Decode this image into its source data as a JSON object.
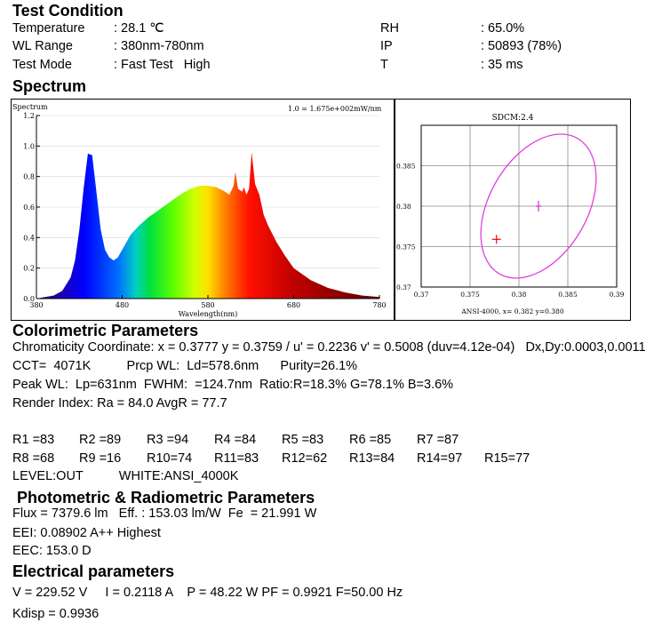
{
  "test_condition": {
    "title": "Test Condition",
    "rows": [
      {
        "k1": "Temperature",
        "v1": ": 28.1 ℃",
        "k2": "RH",
        "v2": ": 65.0%"
      },
      {
        "k1": "WL Range",
        "v1": ": 380nm-780nm",
        "k2": "IP",
        "v2": ": 50893 (78%)"
      },
      {
        "k1": "Test Mode",
        "v1": ": Fast Test   High",
        "k2": "T",
        "v2": ": 35 ms"
      }
    ]
  },
  "spectrum": {
    "title": "Spectrum",
    "chart_label": "Spectrum",
    "scale_note": "1.0 = 1.675e+002mW/nm",
    "xlabel": "Wavelength(nm)",
    "x_ticks": [
      "380",
      "480",
      "580",
      "680",
      "780"
    ],
    "y_ticks": [
      "0.0",
      "0.2",
      "0.4",
      "0.6",
      "0.8",
      "1.0",
      "1.2"
    ]
  },
  "chart_data": [
    {
      "type": "area",
      "xlabel": "Wavelength(nm)",
      "xlim": [
        380,
        780
      ],
      "ylim": [
        0,
        1.2
      ],
      "x": [
        380,
        400,
        410,
        420,
        425,
        430,
        435,
        440,
        445,
        450,
        455,
        460,
        465,
        470,
        475,
        480,
        490,
        500,
        510,
        520,
        530,
        540,
        550,
        560,
        570,
        580,
        590,
        600,
        605,
        610,
        612,
        615,
        620,
        622,
        625,
        628,
        631,
        635,
        640,
        645,
        650,
        660,
        670,
        680,
        700,
        720,
        740,
        760,
        780
      ],
      "values": [
        0.0,
        0.02,
        0.05,
        0.14,
        0.25,
        0.45,
        0.72,
        0.95,
        0.94,
        0.7,
        0.45,
        0.32,
        0.27,
        0.25,
        0.27,
        0.32,
        0.42,
        0.48,
        0.53,
        0.57,
        0.61,
        0.65,
        0.69,
        0.72,
        0.74,
        0.74,
        0.73,
        0.7,
        0.68,
        0.74,
        0.83,
        0.72,
        0.7,
        0.73,
        0.68,
        0.72,
        0.96,
        0.75,
        0.68,
        0.55,
        0.48,
        0.37,
        0.28,
        0.2,
        0.12,
        0.07,
        0.04,
        0.02,
        0.01
      ]
    },
    {
      "type": "scatter",
      "title": "SDCM:2.4",
      "xlim": [
        0.37,
        0.39
      ],
      "ylim": [
        0.37,
        0.39
      ],
      "x_ticks": [
        "0.37",
        "0.375",
        "0.38",
        "0.385",
        "0.39"
      ],
      "y_ticks": [
        "0.37",
        "0.375",
        "0.38",
        "0.385"
      ],
      "measured_point": {
        "x": 0.3777,
        "y": 0.3759
      },
      "ansi_center": {
        "x": 0.382,
        "y": 0.38
      },
      "footer": "ANSI-4000,  x= 0.382 y=0.380"
    }
  ],
  "colorimetric": {
    "title": "Colorimetric Parameters",
    "line1": "Chromaticity Coordinate: x = 0.3777 y = 0.3759 / u' = 0.2236 v' = 0.5008 (duv=4.12e-04)   Dx,Dy:0.0003,0.0011",
    "line2": "CCT=  4071K          Prcp WL:  Ld=578.6nm      Purity=26.1%",
    "line3": "Peak WL:  Lp=631nm  FWHM:  =124.7nm  Ratio:R=18.3% G=78.1% B=3.6%",
    "line4": "Render Index: Ra = 84.0 AvgR = 77.7",
    "r_row1": [
      "R1 =83",
      "R2 =89",
      "R3 =94",
      "R4 =84",
      "R5 =83",
      "R6 =85",
      "R7 =87"
    ],
    "r_row2": [
      "R8 =68",
      "R9 =16",
      "R10=74",
      "R11=83",
      "R12=62",
      "R13=84",
      "R14=97",
      "R15=77"
    ],
    "level": "LEVEL:OUT          WHITE:ANSI_4000K"
  },
  "photometric": {
    "title": "Photometric & Radiometric Parameters",
    "line1": "Flux = 7379.6 lm   Eff. : 153.03 lm/W  Fe  = 21.991 W",
    "line2": "EEI: 0.08902 A++ Highest",
    "line3": "EEC: 153.0 D"
  },
  "electrical": {
    "title": "Electrical parameters",
    "line1": "V = 229.52 V     I = 0.2118 A    P = 48.22 W PF = 0.9921 F=50.00 Hz",
    "line2": "Kdisp = 0.9936"
  }
}
